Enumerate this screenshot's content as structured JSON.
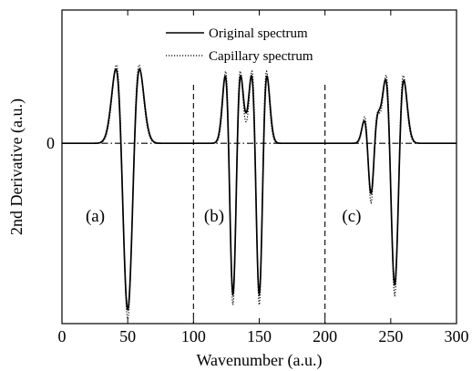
{
  "chart_data": {
    "type": "line",
    "xlabel": "Wavenumber (a.u.)",
    "ylabel": "2nd Derivative (a.u.)",
    "xlim": [
      0,
      300
    ],
    "ylim": [
      -1.15,
      0.85
    ],
    "xticks": [
      0,
      50,
      100,
      150,
      200,
      250,
      300
    ],
    "xtick_labels": [
      "0",
      "50",
      "100",
      "150",
      "200",
      "250",
      "300"
    ],
    "ytick_labels": [
      {
        "value": 0,
        "label": "0"
      }
    ],
    "grid": false,
    "legend_position": "top-center",
    "reference_lines": [
      {
        "orientation": "horizontal",
        "value": 0,
        "style": "dash-dot"
      },
      {
        "orientation": "vertical",
        "value": 100,
        "style": "dashed"
      },
      {
        "orientation": "vertical",
        "value": 200,
        "style": "dashed"
      }
    ],
    "annotations": [
      {
        "text": "(a)",
        "x": 18,
        "y": -0.5
      },
      {
        "text": "(b)",
        "x": 108,
        "y": -0.5
      },
      {
        "text": "(c)",
        "x": 213,
        "y": -0.5
      }
    ],
    "series": [
      {
        "name": "Original spectrum",
        "style": "solid",
        "color": "#000000",
        "components": [
          {
            "center": 50,
            "amplitude": 1.06,
            "sigma": 5.2
          },
          {
            "center": 130,
            "amplitude": 0.96,
            "sigma": 3.4
          },
          {
            "center": 150,
            "amplitude": 0.96,
            "sigma": 3.4
          },
          {
            "center": 235,
            "amplitude": 0.32,
            "sigma": 3.0
          },
          {
            "center": 253,
            "amplitude": 0.9,
            "sigma": 4.0
          }
        ]
      },
      {
        "name": "Capillary spectrum",
        "style": "dotted",
        "color": "#000000",
        "components": [
          {
            "center": 50,
            "amplitude": 1.12,
            "sigma": 5.0
          },
          {
            "center": 130,
            "amplitude": 1.03,
            "sigma": 3.2
          },
          {
            "center": 150,
            "amplitude": 1.03,
            "sigma": 3.2
          },
          {
            "center": 235,
            "amplitude": 0.38,
            "sigma": 2.8
          },
          {
            "center": 253,
            "amplitude": 0.97,
            "sigma": 3.8
          }
        ]
      }
    ]
  }
}
